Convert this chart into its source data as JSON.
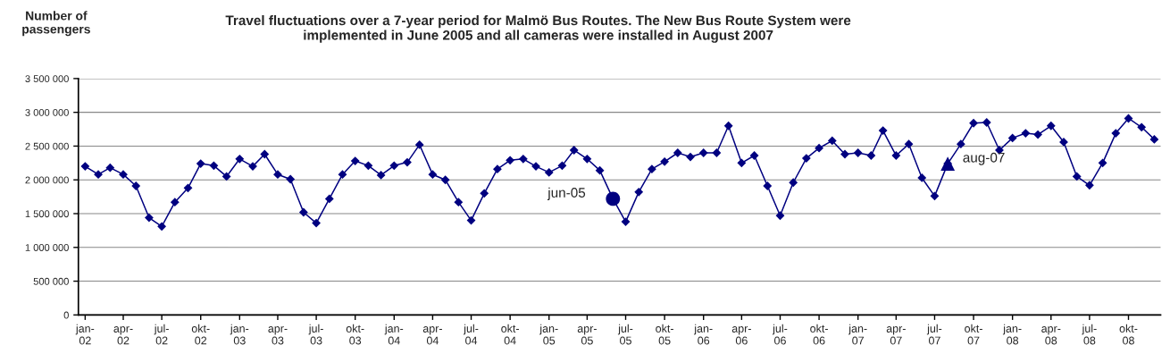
{
  "chart_data": {
    "type": "line",
    "title": "Travel fluctuations over a 7-year period for Malmö Bus Routes. The New Bus Route System were\nimplemented in June 2005 and all cameras were installed in August 2007",
    "ylabel": "Number of\npassengers",
    "x": [
      "2002-01",
      "2002-02",
      "2002-03",
      "2002-04",
      "2002-05",
      "2002-06",
      "2002-07",
      "2002-08",
      "2002-09",
      "2002-10",
      "2002-11",
      "2002-12",
      "2003-01",
      "2003-02",
      "2003-03",
      "2003-04",
      "2003-05",
      "2003-06",
      "2003-07",
      "2003-08",
      "2003-09",
      "2003-10",
      "2003-11",
      "2003-12",
      "2004-01",
      "2004-02",
      "2004-03",
      "2004-04",
      "2004-05",
      "2004-06",
      "2004-07",
      "2004-08",
      "2004-09",
      "2004-10",
      "2004-11",
      "2004-12",
      "2005-01",
      "2005-02",
      "2005-03",
      "2005-04",
      "2005-05",
      "2005-06",
      "2005-07",
      "2005-08",
      "2005-09",
      "2005-10",
      "2005-11",
      "2005-12",
      "2006-01",
      "2006-02",
      "2006-03",
      "2006-04",
      "2006-05",
      "2006-06",
      "2006-07",
      "2006-08",
      "2006-09",
      "2006-10",
      "2006-11",
      "2006-12",
      "2007-01",
      "2007-02",
      "2007-03",
      "2007-04",
      "2007-05",
      "2007-06",
      "2007-07",
      "2007-08",
      "2007-09",
      "2007-10",
      "2007-11",
      "2007-12",
      "2008-01",
      "2008-02",
      "2008-03",
      "2008-04",
      "2008-05",
      "2008-06",
      "2008-07",
      "2008-08",
      "2008-09",
      "2008-10",
      "2008-11",
      "2008-12"
    ],
    "series": [
      {
        "color": "#000080",
        "marker": "diamond",
        "values": [
          2200000,
          2080000,
          2180000,
          2080000,
          1910000,
          1440000,
          1310000,
          1670000,
          1880000,
          2240000,
          2210000,
          2050000,
          2310000,
          2200000,
          2380000,
          2080000,
          2010000,
          1520000,
          1360000,
          1720000,
          2080000,
          2280000,
          2210000,
          2070000,
          2210000,
          2260000,
          2520000,
          2080000,
          2000000,
          1670000,
          1400000,
          1800000,
          2160000,
          2290000,
          2310000,
          2200000,
          2110000,
          2210000,
          2440000,
          2310000,
          2140000,
          1720000,
          1380000,
          1820000,
          2160000,
          2270000,
          2400000,
          2340000,
          2400000,
          2400000,
          2800000,
          2250000,
          2360000,
          1910000,
          1470000,
          1960000,
          2320000,
          2470000,
          2580000,
          2380000,
          2400000,
          2360000,
          2730000,
          2360000,
          2530000,
          2030000,
          1760000,
          2240000,
          2530000,
          2840000,
          2850000,
          2440000,
          2620000,
          2690000,
          2670000,
          2800000,
          2560000,
          2050000,
          1920000,
          2250000,
          2690000,
          2910000,
          2780000,
          2600000
        ]
      },
      {
        "type": "scatter",
        "color": "#000080",
        "marker": "circle",
        "x": [
          "2005-06"
        ],
        "values": [
          1720000
        ]
      },
      {
        "type": "scatter",
        "color": "#000080",
        "marker": "triangle",
        "x": [
          "2007-08"
        ],
        "values": [
          2240000
        ]
      }
    ],
    "annotations": [
      {
        "text": "jun-05",
        "x": "2005-06",
        "y": 1720000
      },
      {
        "text": "aug-07",
        "x": "2007-08",
        "y": 2240000
      }
    ],
    "xlim": [
      "2001-12-16",
      "2008-12-16"
    ],
    "xticks": [
      {
        "value": "2002-01",
        "label": "jan-\n02"
      },
      {
        "value": "2002-04",
        "label": "apr-\n02"
      },
      {
        "value": "2002-07",
        "label": "jul-\n02"
      },
      {
        "value": "2002-10",
        "label": "okt-\n02"
      },
      {
        "value": "2003-01",
        "label": "jan-\n03"
      },
      {
        "value": "2003-04",
        "label": "apr-\n03"
      },
      {
        "value": "2003-07",
        "label": "jul-\n03"
      },
      {
        "value": "2003-10",
        "label": "okt-\n03"
      },
      {
        "value": "2004-01",
        "label": "jan-\n04"
      },
      {
        "value": "2004-04",
        "label": "apr-\n04"
      },
      {
        "value": "2004-07",
        "label": "jul-\n04"
      },
      {
        "value": "2004-10",
        "label": "okt-\n04"
      },
      {
        "value": "2005-01",
        "label": "jan-\n05"
      },
      {
        "value": "2005-04",
        "label": "apr-\n05"
      },
      {
        "value": "2005-07",
        "label": "jul-\n05"
      },
      {
        "value": "2005-10",
        "label": "okt-\n05"
      },
      {
        "value": "2006-01",
        "label": "jan-\n06"
      },
      {
        "value": "2006-04",
        "label": "apr-\n06"
      },
      {
        "value": "2006-07",
        "label": "jul-\n06"
      },
      {
        "value": "2006-10",
        "label": "okt-\n06"
      },
      {
        "value": "2007-01",
        "label": "jan-\n07"
      },
      {
        "value": "2007-04",
        "label": "apr-\n07"
      },
      {
        "value": "2007-07",
        "label": "jul-\n07"
      },
      {
        "value": "2007-10",
        "label": "okt-\n07"
      },
      {
        "value": "2008-01",
        "label": "jan-\n08"
      },
      {
        "value": "2008-04",
        "label": "apr-\n08"
      },
      {
        "value": "2008-07",
        "label": "jul-\n08"
      },
      {
        "value": "2008-10",
        "label": "okt-\n08"
      }
    ],
    "ylim": [
      0,
      3500000
    ],
    "yticks": [
      0,
      {
        "value": 500000,
        "label": "500 000"
      },
      {
        "value": 1000000,
        "label": "1 000 000"
      },
      {
        "value": 1500000,
        "label": "1 500 000"
      },
      {
        "value": 2000000,
        "label": "2 000 000"
      },
      {
        "value": 2500000,
        "label": "2 500 000"
      },
      {
        "value": 3000000,
        "label": "3 000 000"
      },
      {
        "value": 3500000,
        "label": "3 500 000"
      }
    ],
    "grid": "y",
    "legend": false
  }
}
